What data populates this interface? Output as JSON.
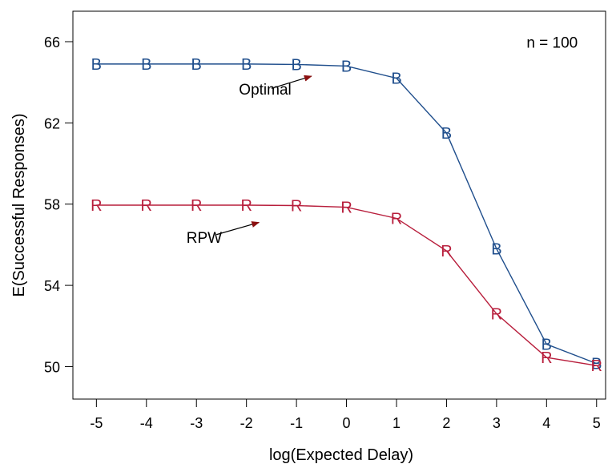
{
  "chart_data": {
    "type": "line",
    "title": "",
    "xlabel": "log(Expected Delay)",
    "ylabel": "E(Successful Responses)",
    "xlim": [
      -5.47,
      5.18
    ],
    "ylim": [
      48.4,
      67.5
    ],
    "x_ticks": [
      -5,
      -4,
      -3,
      -2,
      -1,
      0,
      1,
      2,
      3,
      4,
      5
    ],
    "y_ticks": [
      50,
      54,
      58,
      62,
      66
    ],
    "x": [
      -5,
      -4,
      -3,
      -2,
      -1,
      0,
      1,
      2,
      3,
      4,
      5
    ],
    "series": [
      {
        "marker": "B",
        "color": "#1f4e8c",
        "values": [
          64.9,
          64.9,
          64.9,
          64.9,
          64.88,
          64.8,
          64.2,
          61.5,
          55.8,
          51.1,
          50.15
        ]
      },
      {
        "marker": "R",
        "color": "#b81e3c",
        "values": [
          57.95,
          57.95,
          57.95,
          57.95,
          57.93,
          57.85,
          57.3,
          55.7,
          52.6,
          50.45,
          50.05
        ]
      }
    ],
    "annotations": [
      {
        "text": "n = 100",
        "x": 3.6,
        "y": 65.7
      },
      {
        "text": "Optimal",
        "x": -2.15,
        "y": 63.4,
        "arrow_from": [
          -1.5,
          63.7
        ],
        "arrow_to": [
          -0.7,
          64.3
        ],
        "arrow_color": "#8b1010"
      },
      {
        "text": "RPW",
        "x": -3.2,
        "y": 56.1,
        "arrow_from": [
          -2.6,
          56.5
        ],
        "arrow_to": [
          -1.75,
          57.1
        ],
        "arrow_color": "#8b1010"
      }
    ],
    "grid": false,
    "legend": "none"
  }
}
